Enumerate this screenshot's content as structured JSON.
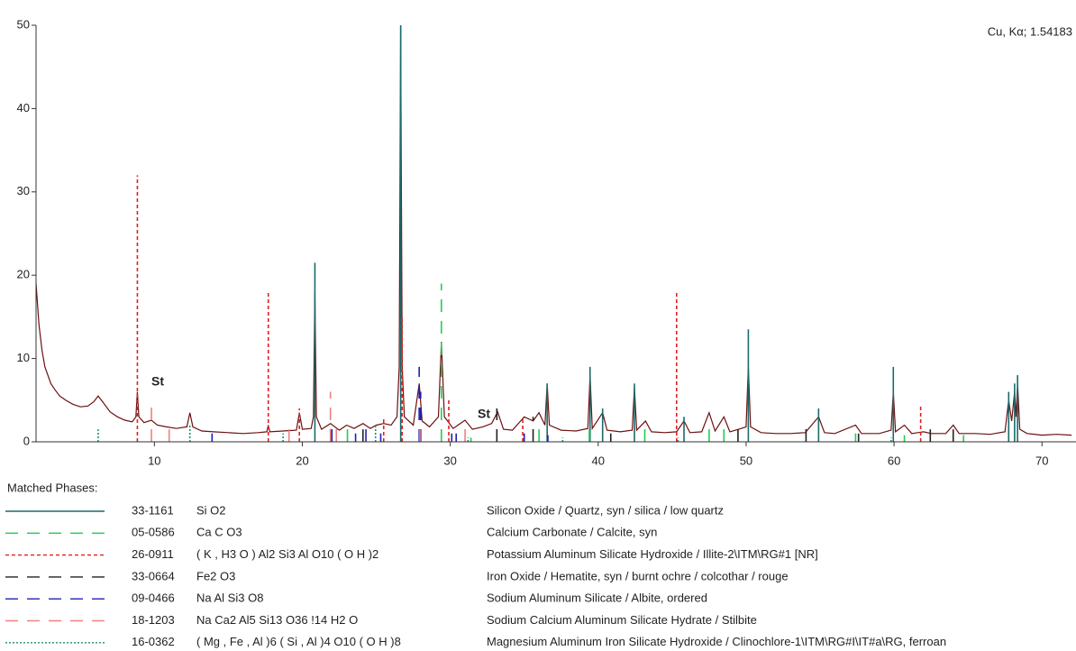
{
  "chart_data": {
    "type": "xrd",
    "source_label": "Cu, Kα; 1.54183",
    "annotations": [
      "St",
      "St"
    ],
    "legend_title": "Matched Phases:",
    "xlim": [
      2,
      72.3
    ],
    "ylim": [
      0,
      50
    ],
    "xticks": [
      10,
      20,
      30,
      40,
      50,
      60,
      70
    ],
    "yticks": [
      0,
      10,
      20,
      30,
      40,
      50
    ],
    "pattern": {
      "color": "#6b1010",
      "x": [
        2,
        2.2,
        2.4,
        2.6,
        2.8,
        3.0,
        3.3,
        3.6,
        4.0,
        4.5,
        5.0,
        5.5,
        5.9,
        6.2,
        6.5,
        7.0,
        7.5,
        8.0,
        8.5,
        8.75,
        8.85,
        8.95,
        9.3,
        9.8,
        10.2,
        10.8,
        11.5,
        12.2,
        12.4,
        12.6,
        13.2,
        14,
        15,
        16,
        17,
        17.6,
        17.7,
        17.8,
        18.7,
        19.6,
        19.8,
        20.0,
        20.6,
        20.75,
        20.85,
        20.95,
        21.3,
        21.9,
        22.5,
        23.0,
        23.5,
        24.1,
        24.6,
        25.0,
        25.5,
        26.0,
        26.4,
        26.55,
        26.65,
        26.75,
        26.9,
        27.5,
        27.9,
        28.1,
        28.6,
        29.2,
        29.4,
        29.6,
        30.2,
        31.0,
        31.5,
        32.2,
        32.8,
        33.2,
        33.6,
        34.2,
        35.0,
        35.6,
        36.0,
        36.4,
        36.55,
        36.7,
        37.5,
        38.5,
        39.3,
        39.45,
        39.6,
        40.3,
        40.6,
        41.5,
        42.3,
        42.45,
        42.6,
        43.2,
        43.6,
        44.5,
        45.3,
        45.8,
        46.2,
        47.0,
        47.5,
        47.9,
        48.5,
        48.9,
        49.5,
        50.0,
        50.15,
        50.3,
        51,
        52,
        53,
        54,
        54.9,
        55.3,
        56,
        57.4,
        57.8,
        59,
        59.8,
        59.95,
        60.1,
        60.7,
        61.2,
        62,
        62.5,
        63.5,
        64.0,
        64.4,
        65.5,
        66.5,
        67.5,
        67.75,
        67.95,
        68.15,
        68.25,
        68.35,
        68.5,
        69,
        70,
        71,
        72
      ],
      "values": [
        19,
        14,
        11,
        9,
        8,
        7,
        6.2,
        5.5,
        5,
        4.5,
        4.2,
        4.3,
        4.8,
        5.5,
        4.8,
        3.6,
        3,
        2.6,
        2.4,
        3,
        6,
        3,
        2.3,
        2.6,
        2,
        1.8,
        1.6,
        1.8,
        3.5,
        1.8,
        1.3,
        1.2,
        1.1,
        1.0,
        1.1,
        1.2,
        2,
        1.2,
        1.3,
        1.4,
        3.5,
        1.5,
        1.6,
        3,
        18,
        3,
        1.5,
        2.2,
        1.4,
        2,
        1.6,
        2.2,
        1.6,
        2,
        2.2,
        2,
        3,
        9,
        50,
        9,
        3,
        2,
        7,
        2.5,
        1.8,
        3,
        12,
        3,
        1.6,
        2.6,
        1.5,
        1.8,
        2.2,
        3.6,
        1.5,
        1.4,
        3,
        2.5,
        3.5,
        2,
        7,
        2,
        1.4,
        1.3,
        1.6,
        8,
        1.6,
        3.5,
        1.4,
        1.2,
        1.4,
        6.5,
        1.4,
        2.5,
        1.2,
        1.1,
        1.2,
        2.5,
        1.1,
        1.2,
        3.5,
        1.3,
        3,
        1.2,
        1.5,
        1.8,
        9,
        1.8,
        1.1,
        1.0,
        1.0,
        1.1,
        3,
        1.1,
        1.0,
        2,
        1.0,
        1.0,
        1.4,
        6,
        1.2,
        2,
        1.0,
        1.2,
        1.0,
        1.0,
        2,
        1.0,
        1.0,
        0.9,
        1.2,
        5,
        2.5,
        6,
        3,
        7,
        1.5,
        1.0,
        0.8,
        0.9,
        0.8
      ]
    },
    "series": [
      {
        "name": "33-1161",
        "formula": "Si O2",
        "description": "Silicon Oxide / Quartz, syn / silica / low quartz",
        "color": "#1a6b6b",
        "dash": "solid",
        "x": [
          20.85,
          26.65,
          36.55,
          39.45,
          40.3,
          42.45,
          45.8,
          50.15,
          54.9,
          59.95,
          67.75,
          68.15,
          68.35
        ],
        "values": [
          21.5,
          50,
          7,
          9,
          4,
          7,
          3,
          13.5,
          4,
          9,
          6,
          7,
          8
        ]
      },
      {
        "name": "05-0586",
        "formula": "Ca C O3",
        "description": "Calcium Carbonate / Calcite, syn",
        "color": "#22cc55",
        "dash": "dashed",
        "x": [
          23.05,
          29.4,
          31.4,
          36.0,
          39.4,
          43.15,
          47.5,
          48.5,
          57.4,
          60.7,
          64.7
        ],
        "values": [
          1.5,
          19,
          0.5,
          1.5,
          2.5,
          2.5,
          2,
          2.5,
          1,
          0.8,
          0.8
        ]
      },
      {
        "name": "26-0911",
        "formula": "( K , H3 O ) Al2 Si3 Al O10 ( O H )2",
        "description": "Potassium Aluminum Silicate Hydroxide / Illite-2\\ITM\\RG#1 [NR]",
        "color": "#e02020",
        "dash": "dotted",
        "x": [
          8.85,
          17.7,
          19.8,
          25.5,
          26.75,
          29.9,
          34.9,
          45.3,
          61.8
        ],
        "values": [
          32,
          18,
          4,
          3,
          15,
          5,
          3,
          18,
          4.5
        ]
      },
      {
        "name": "33-0664",
        "formula": "Fe2 O3",
        "description": "Iron Oxide / Hematite, syn / burnt ochre / colcothar / rouge",
        "color": "#222222",
        "dash": "dashed",
        "x": [
          24.1,
          33.15,
          35.6,
          40.85,
          49.45,
          54.05,
          57.6,
          62.45,
          64.0
        ],
        "values": [
          1.5,
          4,
          3,
          1,
          1.5,
          2,
          1,
          1.5,
          1.5
        ]
      },
      {
        "name": "09-0466",
        "formula": "Na Al Si3 O8",
        "description": "Sodium Aluminum Silicate / Albite, ordered",
        "color": "#2020b0",
        "dash": "dashed",
        "x": [
          13.9,
          22.0,
          23.6,
          24.3,
          25.3,
          27.9,
          28.0,
          30.1,
          30.4,
          35.0,
          36.6
        ],
        "values": [
          1,
          2.5,
          1,
          1.5,
          1,
          9,
          6,
          1,
          1,
          1,
          0.8
        ]
      },
      {
        "name": "18-1203",
        "formula": "Na Ca2 Al5 Si13 O36 !14 H2 O",
        "description": "Sodium Calcium Aluminum Silicate Hydrate / Stilbite",
        "color": "#f08080",
        "dash": "dashed",
        "x": [
          9.8,
          11.0,
          19.1,
          21.9,
          22.3,
          27.95,
          31.0
        ],
        "values": [
          5,
          1.5,
          2,
          6,
          2,
          1.5,
          2
        ]
      },
      {
        "name": "16-0362",
        "formula": "( Mg , Fe , Al )6 ( Si , Al )4 O10 ( O H )8",
        "description": "Magnesium Aluminum Iron Silicate Hydroxide / Clinochlore-1\\ITM\\RG#I\\IT#a\\RG, ferroan",
        "color": "#209060",
        "dash": "fine",
        "x": [
          6.2,
          12.4,
          18.7,
          24.95,
          31.2,
          37.6,
          45.4,
          59.8
        ],
        "values": [
          1.5,
          2,
          1,
          2,
          0.5,
          0.5,
          0.5,
          0.5
        ]
      }
    ]
  }
}
